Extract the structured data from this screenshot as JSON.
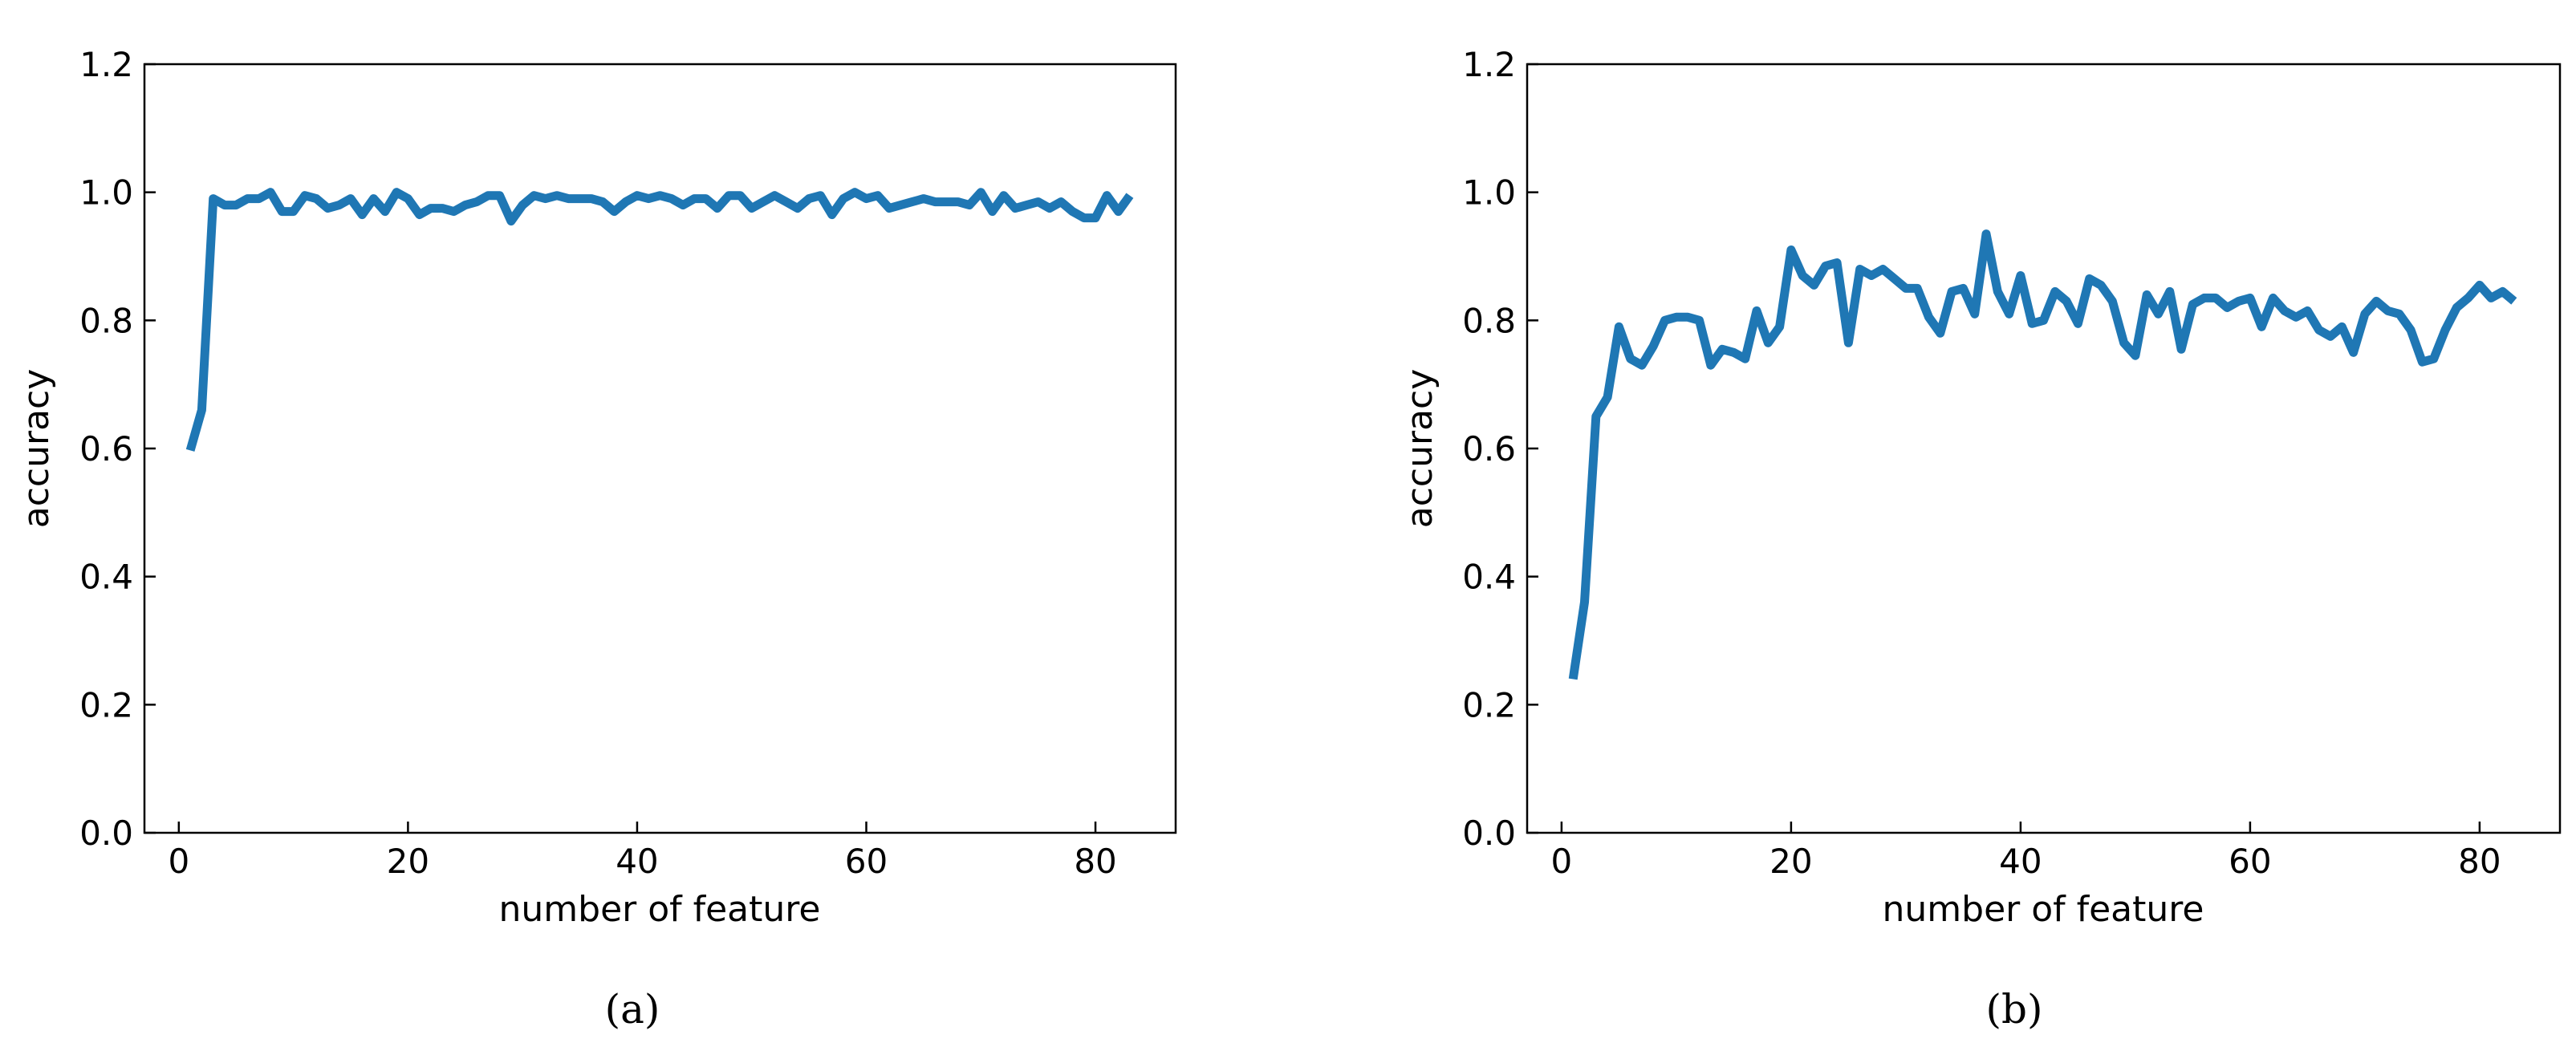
{
  "chart_data": [
    {
      "type": "line",
      "caption": "(a)",
      "xlabel": "number of feature",
      "ylabel": "accuracy",
      "xlim": [
        -3,
        87
      ],
      "ylim": [
        0.0,
        1.2
      ],
      "xticks": [
        0,
        20,
        40,
        60,
        80
      ],
      "yticks": [
        0.0,
        0.2,
        0.4,
        0.6,
        0.8,
        1.0,
        1.2
      ],
      "xtick_labels": [
        "0",
        "20",
        "40",
        "60",
        "80"
      ],
      "ytick_labels": [
        "0.0",
        "0.2",
        "0.4",
        "0.6",
        "0.8",
        "1.0",
        "1.2"
      ],
      "tick_direction": "in",
      "grid": false,
      "series": [
        {
          "color": "#1f77b4",
          "x": [
            1,
            2,
            3,
            4,
            5,
            6,
            7,
            8,
            9,
            10,
            11,
            12,
            13,
            14,
            15,
            16,
            17,
            18,
            19,
            20,
            21,
            22,
            23,
            24,
            25,
            26,
            27,
            28,
            29,
            30,
            31,
            32,
            33,
            34,
            35,
            36,
            37,
            38,
            39,
            40,
            41,
            42,
            43,
            44,
            45,
            46,
            47,
            48,
            49,
            50,
            51,
            52,
            53,
            54,
            55,
            56,
            57,
            58,
            59,
            60,
            61,
            62,
            63,
            64,
            65,
            66,
            67,
            68,
            69,
            70,
            71,
            72,
            73,
            74,
            75,
            76,
            77,
            78,
            79,
            80,
            81,
            82,
            83
          ],
          "values": [
            0.597,
            0.66,
            0.99,
            0.98,
            0.98,
            0.99,
            0.99,
            1.0,
            0.97,
            0.97,
            0.995,
            0.99,
            0.975,
            0.98,
            0.99,
            0.965,
            0.99,
            0.97,
            1.0,
            0.99,
            0.965,
            0.975,
            0.975,
            0.97,
            0.98,
            0.985,
            0.995,
            0.995,
            0.955,
            0.98,
            0.995,
            0.99,
            0.995,
            0.99,
            0.99,
            0.99,
            0.985,
            0.97,
            0.985,
            0.995,
            0.99,
            0.995,
            0.99,
            0.98,
            0.99,
            0.99,
            0.975,
            0.995,
            0.995,
            0.975,
            0.985,
            0.995,
            0.985,
            0.975,
            0.99,
            0.995,
            0.965,
            0.99,
            1.0,
            0.99,
            0.995,
            0.975,
            0.98,
            0.985,
            0.99,
            0.985,
            0.985,
            0.985,
            0.98,
            1.0,
            0.97,
            0.995,
            0.975,
            0.98,
            0.985,
            0.975,
            0.985,
            0.97,
            0.96,
            0.96,
            0.995,
            0.97,
            0.995
          ]
        }
      ]
    },
    {
      "type": "line",
      "caption": "(b)",
      "xlabel": "number of feature",
      "ylabel": "accuracy",
      "xlim": [
        -3,
        87
      ],
      "ylim": [
        0.0,
        1.2
      ],
      "xticks": [
        0,
        20,
        40,
        60,
        80
      ],
      "yticks": [
        0.0,
        0.2,
        0.4,
        0.6,
        0.8,
        1.0,
        1.2
      ],
      "xtick_labels": [
        "0",
        "20",
        "40",
        "60",
        "80"
      ],
      "ytick_labels": [
        "0.0",
        "0.2",
        "0.4",
        "0.6",
        "0.8",
        "1.0",
        "1.2"
      ],
      "tick_direction": "in",
      "grid": false,
      "series": [
        {
          "color": "#1f77b4",
          "x": [
            1,
            2,
            3,
            4,
            5,
            6,
            7,
            8,
            9,
            10,
            11,
            12,
            13,
            14,
            15,
            16,
            17,
            18,
            19,
            20,
            21,
            22,
            23,
            24,
            25,
            26,
            27,
            28,
            29,
            30,
            31,
            32,
            33,
            34,
            35,
            36,
            37,
            38,
            39,
            40,
            41,
            42,
            43,
            44,
            45,
            46,
            47,
            48,
            49,
            50,
            51,
            52,
            53,
            54,
            55,
            56,
            57,
            58,
            59,
            60,
            61,
            62,
            63,
            64,
            65,
            66,
            67,
            68,
            69,
            70,
            71,
            72,
            73,
            74,
            75,
            76,
            77,
            78,
            79,
            80,
            81,
            82,
            83
          ],
          "values": [
            0.24,
            0.36,
            0.65,
            0.68,
            0.79,
            0.74,
            0.73,
            0.76,
            0.8,
            0.805,
            0.805,
            0.8,
            0.73,
            0.755,
            0.75,
            0.74,
            0.815,
            0.765,
            0.79,
            0.91,
            0.87,
            0.855,
            0.885,
            0.89,
            0.765,
            0.88,
            0.87,
            0.88,
            0.865,
            0.85,
            0.85,
            0.805,
            0.78,
            0.845,
            0.85,
            0.81,
            0.935,
            0.845,
            0.81,
            0.87,
            0.795,
            0.8,
            0.845,
            0.83,
            0.795,
            0.865,
            0.855,
            0.83,
            0.765,
            0.745,
            0.84,
            0.81,
            0.845,
            0.755,
            0.825,
            0.835,
            0.835,
            0.82,
            0.83,
            0.835,
            0.79,
            0.835,
            0.815,
            0.805,
            0.815,
            0.785,
            0.775,
            0.79,
            0.75,
            0.81,
            0.83,
            0.815,
            0.81,
            0.785,
            0.735,
            0.74,
            0.785,
            0.82,
            0.835,
            0.855,
            0.835,
            0.845,
            0.83
          ]
        }
      ]
    }
  ]
}
